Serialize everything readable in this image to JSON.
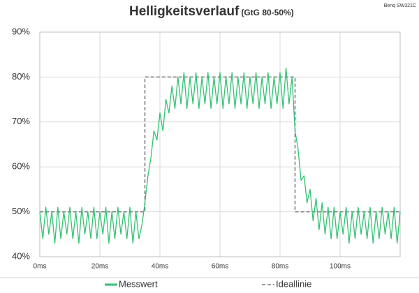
{
  "chart_data": {
    "type": "line",
    "title": "Helligkeitsverlauf",
    "subtitle": "(GtG 80-50%)",
    "annotation": "Benq SW321C",
    "xlim": [
      0,
      120
    ],
    "xticks": [
      {
        "value": 0,
        "label": "0ms"
      },
      {
        "value": 20,
        "label": "20ms"
      },
      {
        "value": 40,
        "label": "40ms"
      },
      {
        "value": 60,
        "label": "60ms"
      },
      {
        "value": 80,
        "label": "80ms"
      },
      {
        "value": 100,
        "label": "100ms"
      }
    ],
    "ylim": [
      40,
      90
    ],
    "yticks": [
      {
        "value": 40,
        "label": "40%"
      },
      {
        "value": 50,
        "label": "50%"
      },
      {
        "value": 60,
        "label": "60%"
      },
      {
        "value": 70,
        "label": "70%"
      },
      {
        "value": 80,
        "label": "80%"
      },
      {
        "value": 90,
        "label": "90%"
      }
    ],
    "grid": true,
    "legend": "bottom",
    "series": [
      {
        "name": "Messwert",
        "color": "#33c173",
        "dash": false,
        "x": [
          0,
          1,
          2,
          3,
          4,
          5,
          6,
          7,
          8,
          9,
          10,
          11,
          12,
          13,
          14,
          15,
          16,
          17,
          18,
          19,
          20,
          21,
          22,
          23,
          24,
          25,
          26,
          27,
          28,
          29,
          30,
          31,
          32,
          33,
          34,
          35,
          36,
          37,
          38,
          39,
          40,
          41,
          42,
          43,
          44,
          45,
          46,
          47,
          48,
          49,
          50,
          51,
          52,
          53,
          54,
          55,
          56,
          57,
          58,
          59,
          60,
          61,
          62,
          63,
          64,
          65,
          66,
          67,
          68,
          69,
          70,
          71,
          72,
          73,
          74,
          75,
          76,
          77,
          78,
          79,
          80,
          81,
          82,
          83,
          84,
          85,
          86,
          87,
          88,
          89,
          90,
          91,
          92,
          93,
          94,
          95,
          96,
          97,
          98,
          99,
          100,
          101,
          102,
          103,
          104,
          105,
          106,
          107,
          108,
          109,
          110,
          111,
          112,
          113,
          114,
          115,
          116,
          117,
          118,
          119,
          120
        ],
        "values": [
          50,
          44,
          51,
          45,
          50,
          43,
          51,
          44,
          50,
          45,
          51,
          44,
          50,
          43,
          51,
          45,
          50,
          44,
          51,
          44,
          50,
          45,
          51,
          43,
          50,
          44,
          51,
          45,
          50,
          44,
          51,
          43,
          50,
          44,
          47,
          52,
          58,
          62,
          68,
          66,
          72,
          68,
          75,
          72,
          78,
          73,
          80,
          74,
          81,
          73,
          80,
          74,
          81,
          73,
          80,
          74,
          81,
          73,
          80,
          74,
          81,
          73,
          80,
          74,
          81,
          73,
          80,
          74,
          81,
          73,
          80,
          74,
          81,
          73,
          80,
          74,
          81,
          73,
          80,
          74,
          81,
          73,
          82,
          74,
          80,
          68,
          64,
          57,
          58,
          52,
          55,
          48,
          53,
          46,
          52,
          45,
          51,
          44,
          51,
          44,
          50,
          45,
          51,
          43,
          50,
          44,
          51,
          45,
          50,
          44,
          51,
          43,
          50,
          44,
          51,
          45,
          50,
          44,
          51,
          43,
          50
        ]
      },
      {
        "name": "Ideallinie",
        "color": "#777777",
        "dash": true,
        "x": [
          0,
          35,
          35,
          85,
          85,
          120
        ],
        "values": [
          50,
          50,
          80,
          80,
          50,
          50
        ]
      }
    ]
  }
}
